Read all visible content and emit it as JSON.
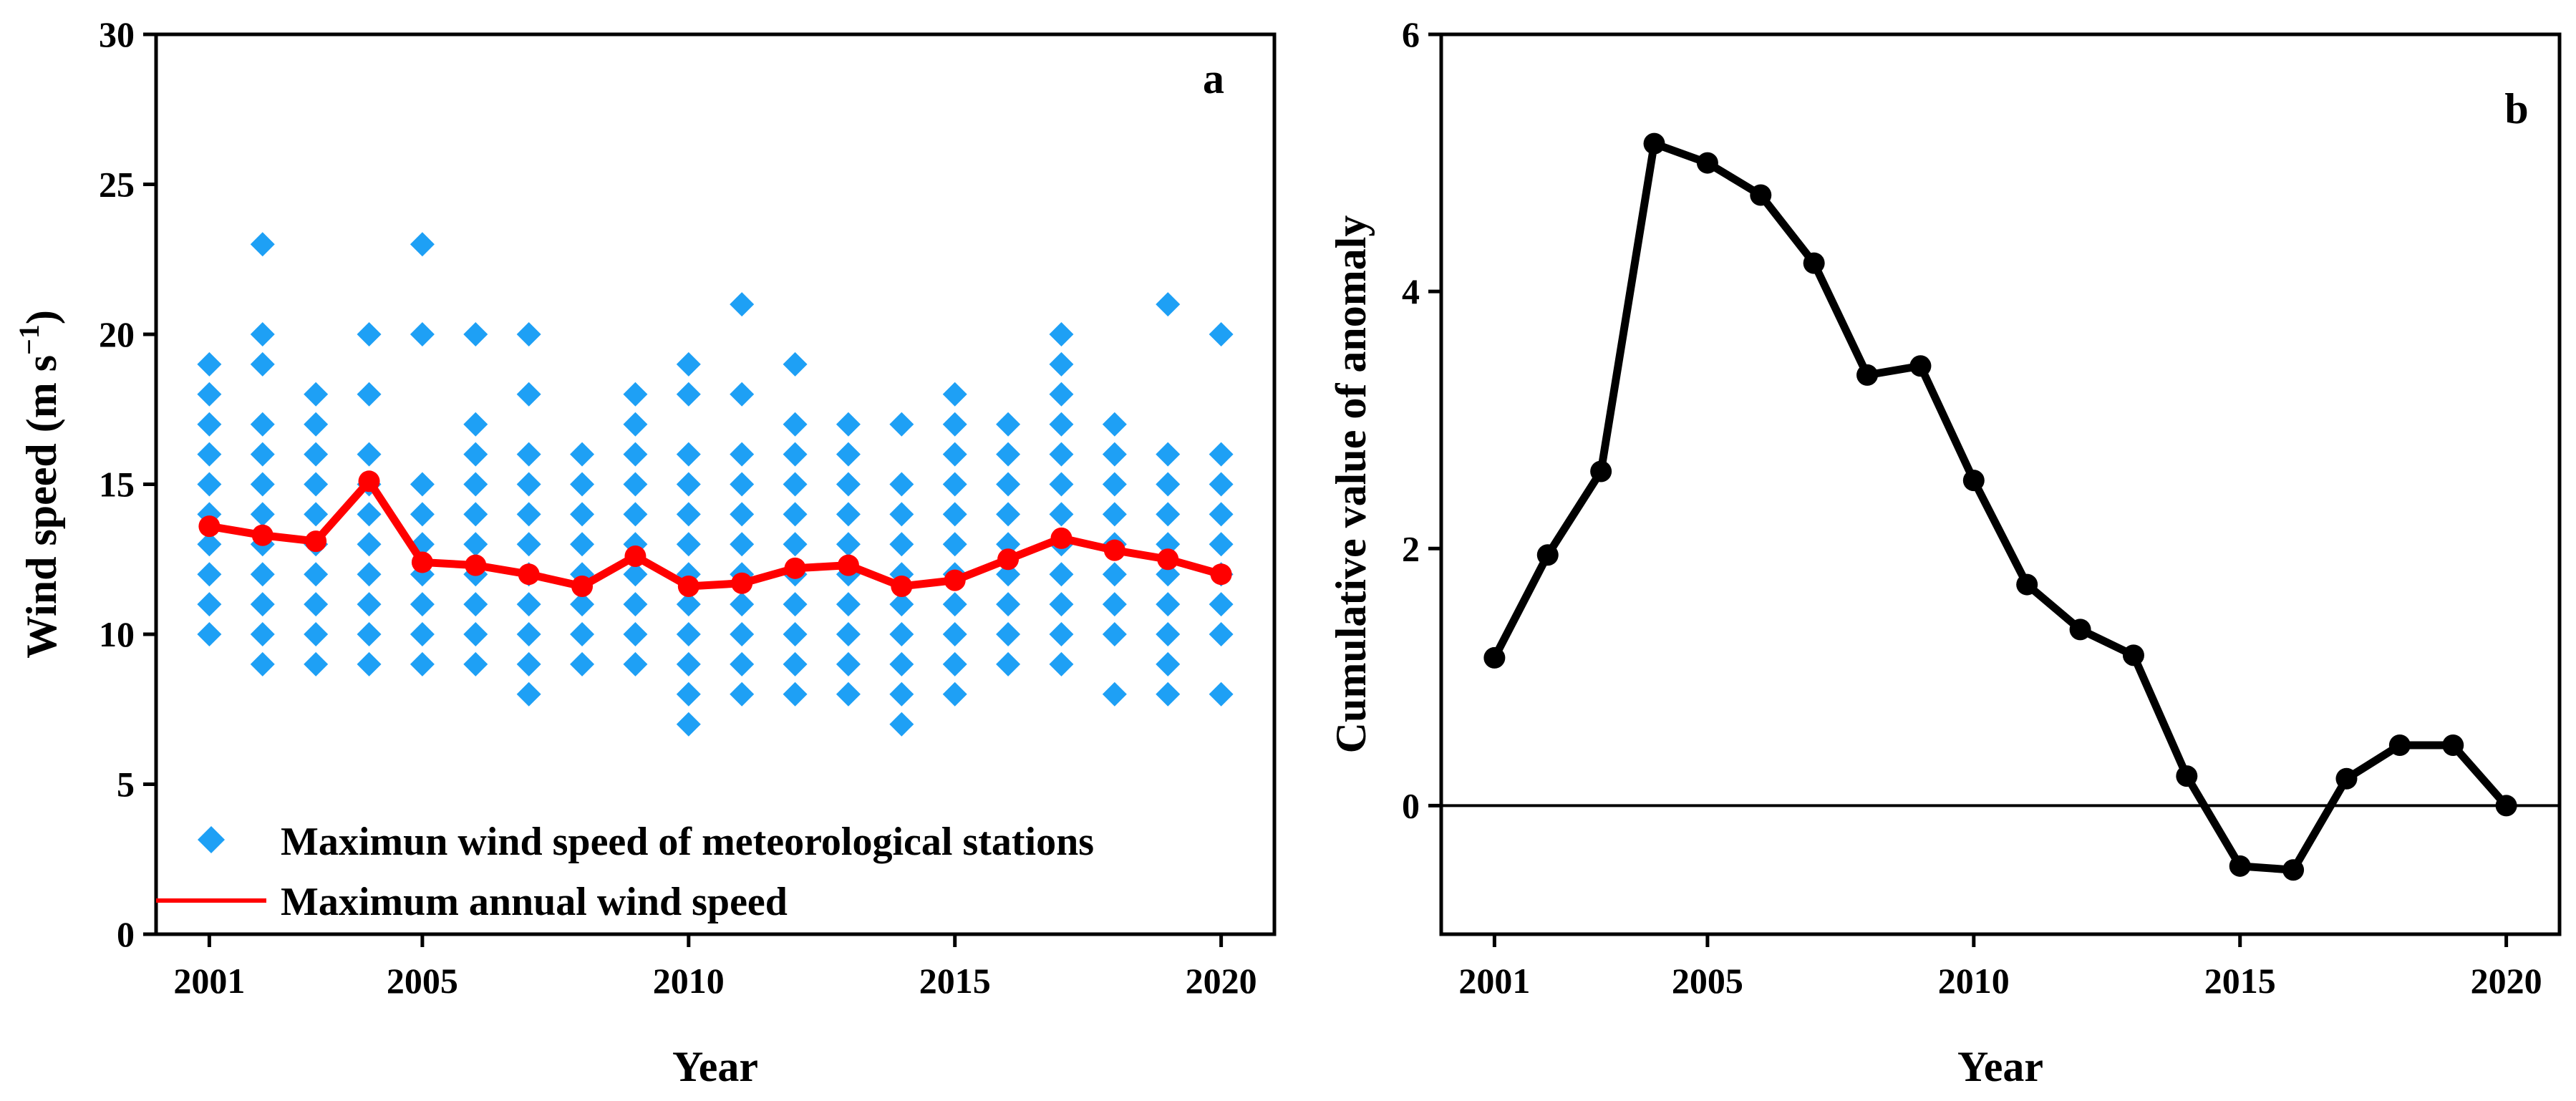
{
  "colors": {
    "station": "#1ea0f5",
    "annual": "#ff0000",
    "cumulative": "#000000",
    "axis": "#000000"
  },
  "chart_data": [
    {
      "panel": "a",
      "type": "scatter",
      "xlabel": "Year",
      "ylabel": "Wind speed (m s",
      "ylabel_unit_sup": "−1",
      "ylabel_close": ")",
      "xlim": [
        2000,
        2021
      ],
      "ylim": [
        0,
        30
      ],
      "xticks": [
        "2001",
        "2005",
        "2010",
        "2015",
        "2020"
      ],
      "yticks": [
        "0",
        "5",
        "10",
        "15",
        "20",
        "25",
        "30"
      ],
      "legend": [
        "Maximun wind speed of meteorological stations",
        "Maximum annual wind speed"
      ],
      "legend_position": "bottom-left",
      "station_series": {
        "name": "Maximun wind speed of meteorological stations",
        "marker": "diamond",
        "points": [
          {
            "year": 2001,
            "values": [
              10,
              11,
              12,
              13,
              14,
              15,
              16,
              17,
              18,
              19
            ]
          },
          {
            "year": 2002,
            "values": [
              9,
              10,
              11,
              12,
              13,
              14,
              15,
              16,
              17,
              19,
              20,
              23
            ]
          },
          {
            "year": 2003,
            "values": [
              9,
              10,
              11,
              12,
              13,
              14,
              15,
              16,
              17,
              18
            ]
          },
          {
            "year": 2004,
            "values": [
              9,
              10,
              11,
              12,
              13,
              14,
              15,
              16,
              18,
              20
            ]
          },
          {
            "year": 2005,
            "values": [
              9,
              10,
              11,
              12,
              13,
              14,
              15,
              20,
              23
            ]
          },
          {
            "year": 2006,
            "values": [
              9,
              10,
              11,
              12,
              13,
              14,
              15,
              16,
              17,
              20
            ]
          },
          {
            "year": 2007,
            "values": [
              8,
              9,
              10,
              11,
              12,
              13,
              14,
              15,
              16,
              18,
              20
            ]
          },
          {
            "year": 2008,
            "values": [
              9,
              10,
              11,
              12,
              13,
              14,
              15,
              16
            ]
          },
          {
            "year": 2009,
            "values": [
              9,
              10,
              11,
              12,
              13,
              14,
              15,
              16,
              17,
              18
            ]
          },
          {
            "year": 2010,
            "values": [
              7,
              8,
              9,
              10,
              11,
              12,
              13,
              14,
              15,
              16,
              18,
              19
            ]
          },
          {
            "year": 2011,
            "values": [
              8,
              9,
              10,
              11,
              12,
              13,
              14,
              15,
              16,
              18,
              21
            ]
          },
          {
            "year": 2012,
            "values": [
              8,
              9,
              10,
              11,
              12,
              13,
              14,
              15,
              16,
              17,
              19
            ]
          },
          {
            "year": 2013,
            "values": [
              8,
              9,
              10,
              11,
              12,
              13,
              14,
              15,
              16,
              17
            ]
          },
          {
            "year": 2014,
            "values": [
              7,
              8,
              9,
              10,
              11,
              12,
              13,
              14,
              15,
              17
            ]
          },
          {
            "year": 2015,
            "values": [
              8,
              9,
              10,
              11,
              12,
              13,
              14,
              15,
              16,
              17,
              18
            ]
          },
          {
            "year": 2016,
            "values": [
              9,
              10,
              11,
              12,
              13,
              14,
              15,
              16,
              17
            ]
          },
          {
            "year": 2017,
            "values": [
              9,
              10,
              11,
              12,
              13,
              14,
              15,
              16,
              17,
              18,
              19,
              20
            ]
          },
          {
            "year": 2018,
            "values": [
              8,
              10,
              11,
              12,
              13,
              14,
              15,
              16,
              17
            ]
          },
          {
            "year": 2019,
            "values": [
              8,
              9,
              10,
              11,
              12,
              13,
              14,
              15,
              16,
              21
            ]
          },
          {
            "year": 2020,
            "values": [
              8,
              10,
              11,
              12,
              13,
              14,
              15,
              16,
              20
            ]
          }
        ]
      },
      "annual_series": {
        "name": "Maximum annual wind speed",
        "x": [
          2001,
          2002,
          2003,
          2004,
          2005,
          2006,
          2007,
          2008,
          2009,
          2010,
          2011,
          2012,
          2013,
          2014,
          2015,
          2016,
          2017,
          2018,
          2019,
          2020
        ],
        "values": [
          13.6,
          13.3,
          13.1,
          15.1,
          12.4,
          12.3,
          12.0,
          11.6,
          12.6,
          11.6,
          11.7,
          12.2,
          12.3,
          11.6,
          11.8,
          12.5,
          13.2,
          12.8,
          12.5,
          12.0
        ]
      }
    },
    {
      "panel": "b",
      "type": "line",
      "xlabel": "Year",
      "ylabel": "Cumulative value of anomaly",
      "xlim": [
        2000,
        2021
      ],
      "ylim": [
        -1,
        6
      ],
      "xticks": [
        "2001",
        "2005",
        "2010",
        "2015",
        "2020"
      ],
      "yticks": [
        "0",
        "2",
        "4",
        "6"
      ],
      "reference_line": 0,
      "series": [
        {
          "name": "Cumulative value of anomaly",
          "x": [
            2001,
            2002,
            2003,
            2004,
            2005,
            2006,
            2007,
            2008,
            2009,
            2010,
            2011,
            2012,
            2013,
            2014,
            2015,
            2016,
            2017,
            2018,
            2019,
            2020
          ],
          "values": [
            1.15,
            1.95,
            2.6,
            5.15,
            5.0,
            4.75,
            4.22,
            3.35,
            3.42,
            2.53,
            1.72,
            1.37,
            1.17,
            0.23,
            -0.47,
            -0.5,
            0.21,
            0.47,
            0.47,
            0.0
          ]
        }
      ]
    }
  ]
}
